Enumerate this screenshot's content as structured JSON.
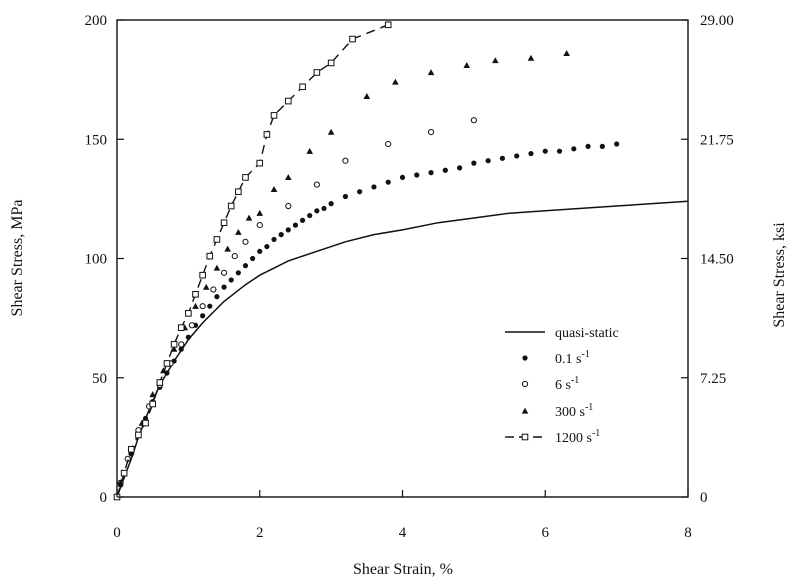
{
  "chart_data": {
    "type": "scatter",
    "title": "",
    "xlabel": "Shear Strain, %",
    "ylabel": "Shear Stress, MPa",
    "y2label": "Shear Stress, ksi",
    "xlim": [
      0,
      8
    ],
    "ylim": [
      0,
      200
    ],
    "y2lim": [
      0,
      29.0
    ],
    "x_ticks": [
      "0",
      "2",
      "4",
      "6",
      "8"
    ],
    "y_ticks": [
      "0",
      "50",
      "100",
      "150",
      "200"
    ],
    "y2_ticks": [
      "0",
      "7.25",
      "14.50",
      "21.75",
      "29.00"
    ],
    "grid": false,
    "legend_position": "right",
    "series": [
      {
        "name": "quasi-static",
        "style": "line",
        "x": [
          0,
          0.1,
          0.2,
          0.3,
          0.4,
          0.5,
          0.6,
          0.8,
          1.0,
          1.2,
          1.5,
          1.8,
          2.0,
          2.4,
          2.8,
          3.2,
          3.6,
          4.0,
          4.5,
          5.0,
          5.5,
          6.0,
          6.5,
          7.0,
          7.5,
          8.0
        ],
        "y": [
          0,
          8,
          16,
          25,
          33,
          40,
          47,
          57,
          66,
          73,
          82,
          89,
          93,
          99,
          103,
          107,
          110,
          112,
          115,
          117,
          119,
          120,
          121,
          122,
          123,
          124
        ]
      },
      {
        "name": "0.1 s-1",
        "style": "filled-circle",
        "x": [
          0.05,
          0.1,
          0.2,
          0.3,
          0.4,
          0.5,
          0.6,
          0.7,
          0.8,
          0.9,
          1.0,
          1.1,
          1.2,
          1.3,
          1.4,
          1.5,
          1.6,
          1.7,
          1.8,
          1.9,
          2.0,
          2.1,
          2.2,
          2.3,
          2.4,
          2.5,
          2.6,
          2.7,
          2.8,
          2.9,
          3.0,
          3.2,
          3.4,
          3.6,
          3.8,
          4.0,
          4.2,
          4.4,
          4.6,
          4.8,
          5.0,
          5.2,
          5.4,
          5.6,
          5.8,
          6.0,
          6.2,
          6.4,
          6.6,
          6.8,
          7.0
        ],
        "y": [
          5,
          10,
          18,
          26,
          33,
          40,
          46,
          52,
          57,
          62,
          67,
          72,
          76,
          80,
          84,
          88,
          91,
          94,
          97,
          100,
          103,
          105,
          108,
          110,
          112,
          114,
          116,
          118,
          120,
          121,
          123,
          126,
          128,
          130,
          132,
          134,
          135,
          136,
          137,
          138,
          140,
          141,
          142,
          143,
          144,
          145,
          145,
          146,
          147,
          147,
          148
        ]
      },
      {
        "name": "6 s-1",
        "style": "open-circle",
        "x": [
          0.05,
          0.15,
          0.3,
          0.45,
          0.6,
          0.75,
          0.9,
          1.05,
          1.2,
          1.35,
          1.5,
          1.65,
          1.8,
          2.0,
          2.4,
          2.8,
          3.2,
          3.8,
          4.4,
          5.0
        ],
        "y": [
          6,
          16,
          28,
          38,
          47,
          56,
          64,
          72,
          80,
          87,
          94,
          101,
          107,
          114,
          122,
          131,
          141,
          148,
          153,
          158
        ]
      },
      {
        "name": "300 s-1",
        "style": "filled-triangle",
        "x": [
          0.05,
          0.2,
          0.35,
          0.5,
          0.65,
          0.8,
          0.95,
          1.1,
          1.25,
          1.4,
          1.55,
          1.7,
          1.85,
          2.0,
          2.2,
          2.4,
          2.7,
          3.0,
          3.5,
          3.9,
          4.4,
          4.9,
          5.3,
          5.8,
          6.3
        ],
        "y": [
          6,
          19,
          31,
          43,
          53,
          62,
          71,
          80,
          88,
          96,
          104,
          111,
          117,
          119,
          129,
          134,
          145,
          153,
          168,
          174,
          178,
          181,
          183,
          184,
          186
        ]
      },
      {
        "name": "1200 s-1",
        "style": "dashed-square",
        "x": [
          0,
          0.1,
          0.2,
          0.3,
          0.4,
          0.5,
          0.6,
          0.7,
          0.8,
          0.9,
          1.0,
          1.1,
          1.2,
          1.3,
          1.4,
          1.5,
          1.6,
          1.7,
          1.8,
          2.0,
          2.1,
          2.2,
          2.4,
          2.6,
          2.8,
          3.0,
          3.3,
          3.8
        ],
        "y": [
          0,
          10,
          20,
          26,
          31,
          39,
          48,
          56,
          64,
          71,
          77,
          85,
          93,
          101,
          108,
          115,
          122,
          128,
          134,
          140,
          152,
          160,
          166,
          172,
          178,
          182,
          192,
          198
        ]
      }
    ]
  }
}
